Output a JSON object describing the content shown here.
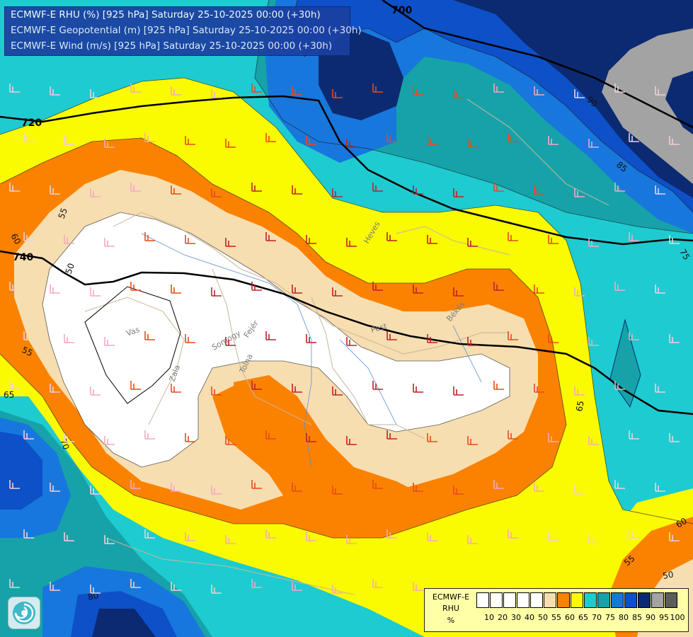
{
  "header": {
    "line1": "ECMWF-E RHU (%) [925 hPa] Saturday 25-10-2025 00:00 (+30h)",
    "line2": "ECMWF-E Geopotential (m) [925 hPa] Saturday 25-10-2025 00:00 (+30h)",
    "line3": "ECMWF-E Wind (m/s) [925 hPa] Saturday 25-10-2025 00:00 (+30h)"
  },
  "geopotential_labels": [
    "700",
    "720",
    "740"
  ],
  "rhu_contour_labels": [
    "50",
    "55",
    "60",
    "65",
    "70",
    "75",
    "80",
    "85",
    "90"
  ],
  "place_labels": [
    "Vas",
    "Zala",
    "Somogy",
    "Fejér",
    "Tolna",
    "Pest",
    "Heves",
    "Békés"
  ],
  "legend": {
    "title_line1": "ECMWF-E",
    "title_line2": "RHU",
    "unit": "%",
    "ticks": [
      "10",
      "20",
      "30",
      "40",
      "50",
      "55",
      "60",
      "65",
      "70",
      "75",
      "80",
      "85",
      "90",
      "95",
      "100"
    ],
    "colors": [
      "#ffffff",
      "#ffffff",
      "#ffffff",
      "#ffffff",
      "#ffffff",
      "#f7deb0",
      "#fb8200",
      "#fafa00",
      "#1ecbd0",
      "#16a2a8",
      "#1777dd",
      "#0d50c8",
      "#0b2a72",
      "#a3a3a3",
      "#5c5c5c"
    ]
  },
  "colors": {
    "rh_lt50": "#ffffff",
    "rh_50_55": "#f7deb0",
    "rh_55_60": "#fb8200",
    "rh_60_65": "#fafa00",
    "rh_65_70": "#1ecbd0",
    "rh_70_75": "#16a2a8",
    "rh_75_80": "#1777dd",
    "rh_80_85": "#0d50c8",
    "rh_85_90": "#0b2a72",
    "rh_90_95": "#a3a3a3",
    "contour": "#000000",
    "title_bg": "#1b3fa0",
    "legend_bg": "#ffffa8"
  },
  "icons": {
    "logo": "ecmwf-swirl-logo"
  }
}
